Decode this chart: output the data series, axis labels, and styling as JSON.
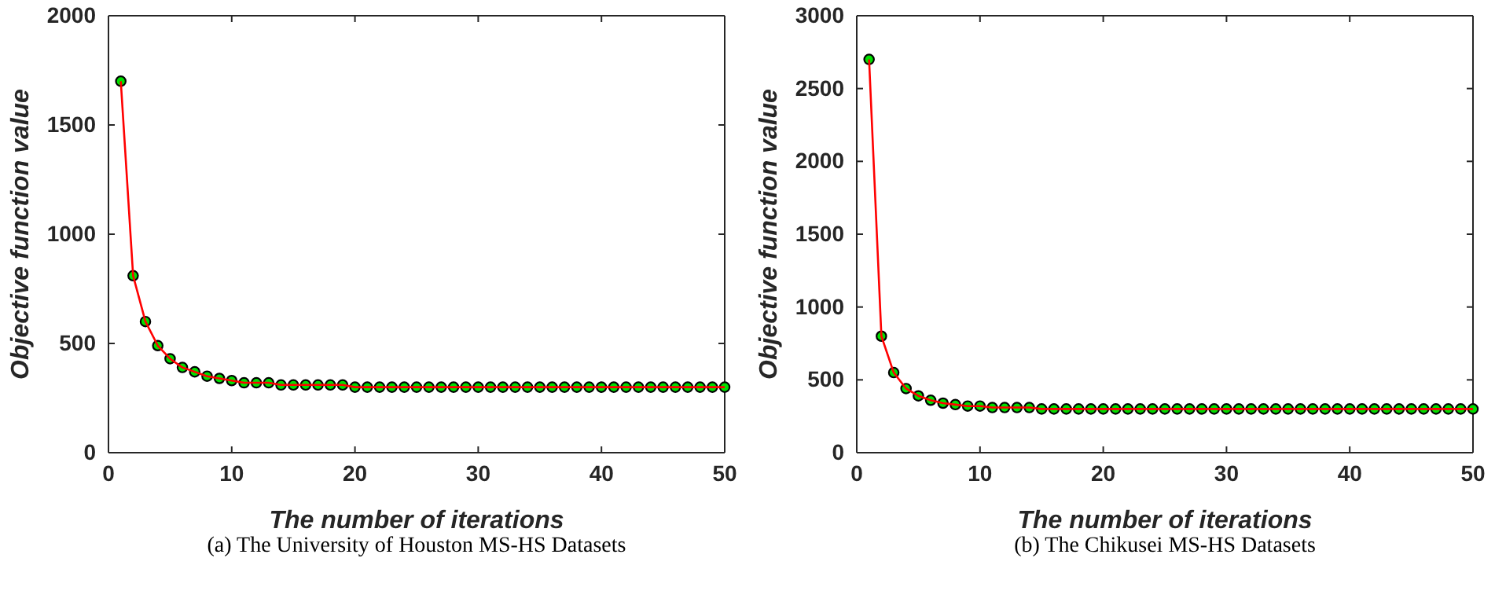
{
  "chart_data": [
    {
      "type": "line",
      "xlabel": "The number of iterations",
      "ylabel": "Objective function value",
      "annotations": [
        "(a)  The University of Houston MS-HS Datasets"
      ],
      "xlim": [
        0,
        50
      ],
      "xticks": [
        0,
        10,
        20,
        30,
        40,
        50
      ],
      "ylim": [
        0,
        2000
      ],
      "yticks": [
        0,
        500,
        1000,
        1500,
        2000
      ],
      "marker": "circle",
      "line_style": "solid",
      "grid": false,
      "x": [
        1,
        2,
        3,
        4,
        5,
        6,
        7,
        8,
        9,
        10,
        11,
        12,
        13,
        14,
        15,
        16,
        17,
        18,
        19,
        20,
        21,
        22,
        23,
        24,
        25,
        26,
        27,
        28,
        29,
        30,
        31,
        32,
        33,
        34,
        35,
        36,
        37,
        38,
        39,
        40,
        41,
        42,
        43,
        44,
        45,
        46,
        47,
        48,
        49,
        50
      ],
      "series": [
        {
          "color": "#ff0000",
          "values": [
            1700,
            810,
            600,
            490,
            430,
            390,
            370,
            350,
            340,
            330,
            320,
            320,
            320,
            310,
            310,
            310,
            310,
            310,
            310,
            300,
            300,
            300,
            300,
            300,
            300,
            300,
            300,
            300,
            300,
            300,
            300,
            300,
            300,
            300,
            300,
            300,
            300,
            300,
            300,
            300,
            300,
            300,
            300,
            300,
            300,
            300,
            300,
            300,
            300,
            300
          ]
        }
      ]
    },
    {
      "type": "line",
      "xlabel": "The number of iterations",
      "ylabel": "Objective function value",
      "annotations": [
        "(b)  The Chikusei MS-HS Datasets"
      ],
      "xlim": [
        0,
        50
      ],
      "xticks": [
        0,
        10,
        20,
        30,
        40,
        50
      ],
      "ylim": [
        0,
        3000
      ],
      "yticks": [
        0,
        500,
        1000,
        1500,
        2000,
        2500,
        3000
      ],
      "marker": "circle",
      "line_style": "solid",
      "grid": false,
      "x": [
        1,
        2,
        3,
        4,
        5,
        6,
        7,
        8,
        9,
        10,
        11,
        12,
        13,
        14,
        15,
        16,
        17,
        18,
        19,
        20,
        21,
        22,
        23,
        24,
        25,
        26,
        27,
        28,
        29,
        30,
        31,
        32,
        33,
        34,
        35,
        36,
        37,
        38,
        39,
        40,
        41,
        42,
        43,
        44,
        45,
        46,
        47,
        48,
        49,
        50
      ],
      "series": [
        {
          "color": "#ff0000",
          "values": [
            2700,
            800,
            550,
            440,
            390,
            360,
            340,
            330,
            320,
            320,
            310,
            310,
            310,
            310,
            300,
            300,
            300,
            300,
            300,
            300,
            300,
            300,
            300,
            300,
            300,
            300,
            300,
            300,
            300,
            300,
            300,
            300,
            300,
            300,
            300,
            300,
            300,
            300,
            300,
            300,
            300,
            300,
            300,
            300,
            300,
            300,
            300,
            300,
            300,
            300
          ]
        }
      ]
    }
  ]
}
